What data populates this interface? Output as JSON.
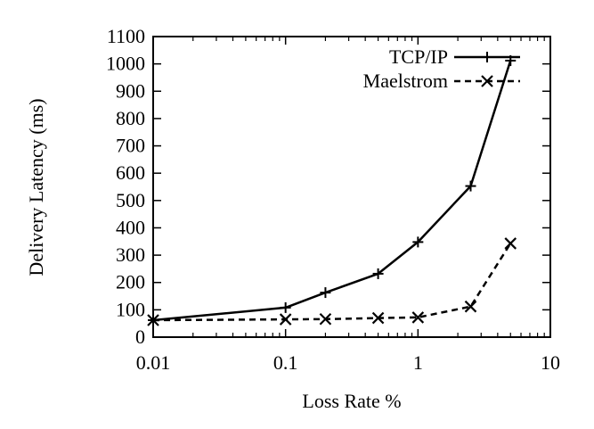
{
  "chart_data": {
    "type": "line",
    "title": "",
    "xlabel": "Loss Rate %",
    "ylabel": "Delivery Latency (ms)",
    "xscale": "log",
    "xlim": [
      0.01,
      10
    ],
    "ylim": [
      0,
      1100
    ],
    "xticks": [
      0.01,
      0.1,
      1,
      10
    ],
    "xtick_labels": [
      "0.01",
      "0.1",
      "1",
      "10"
    ],
    "yticks": [
      0,
      100,
      200,
      300,
      400,
      500,
      600,
      700,
      800,
      900,
      1000,
      1100
    ],
    "ytick_labels": [
      "0",
      "100",
      "200",
      "300",
      "400",
      "500",
      "600",
      "700",
      "800",
      "900",
      "1000",
      "1100"
    ],
    "grid": false,
    "legend_position": "top-right",
    "x": [
      0.01,
      0.1,
      0.2,
      0.5,
      1,
      2.5,
      5
    ],
    "series": [
      {
        "name": "TCP/IP",
        "style": "solid",
        "marker": "plus",
        "values": [
          62,
          108,
          163,
          232,
          348,
          553,
          1012
        ]
      },
      {
        "name": "Maelstrom",
        "style": "dashed",
        "marker": "cross",
        "values": [
          62,
          65,
          66,
          70,
          72,
          112,
          343
        ]
      }
    ]
  }
}
